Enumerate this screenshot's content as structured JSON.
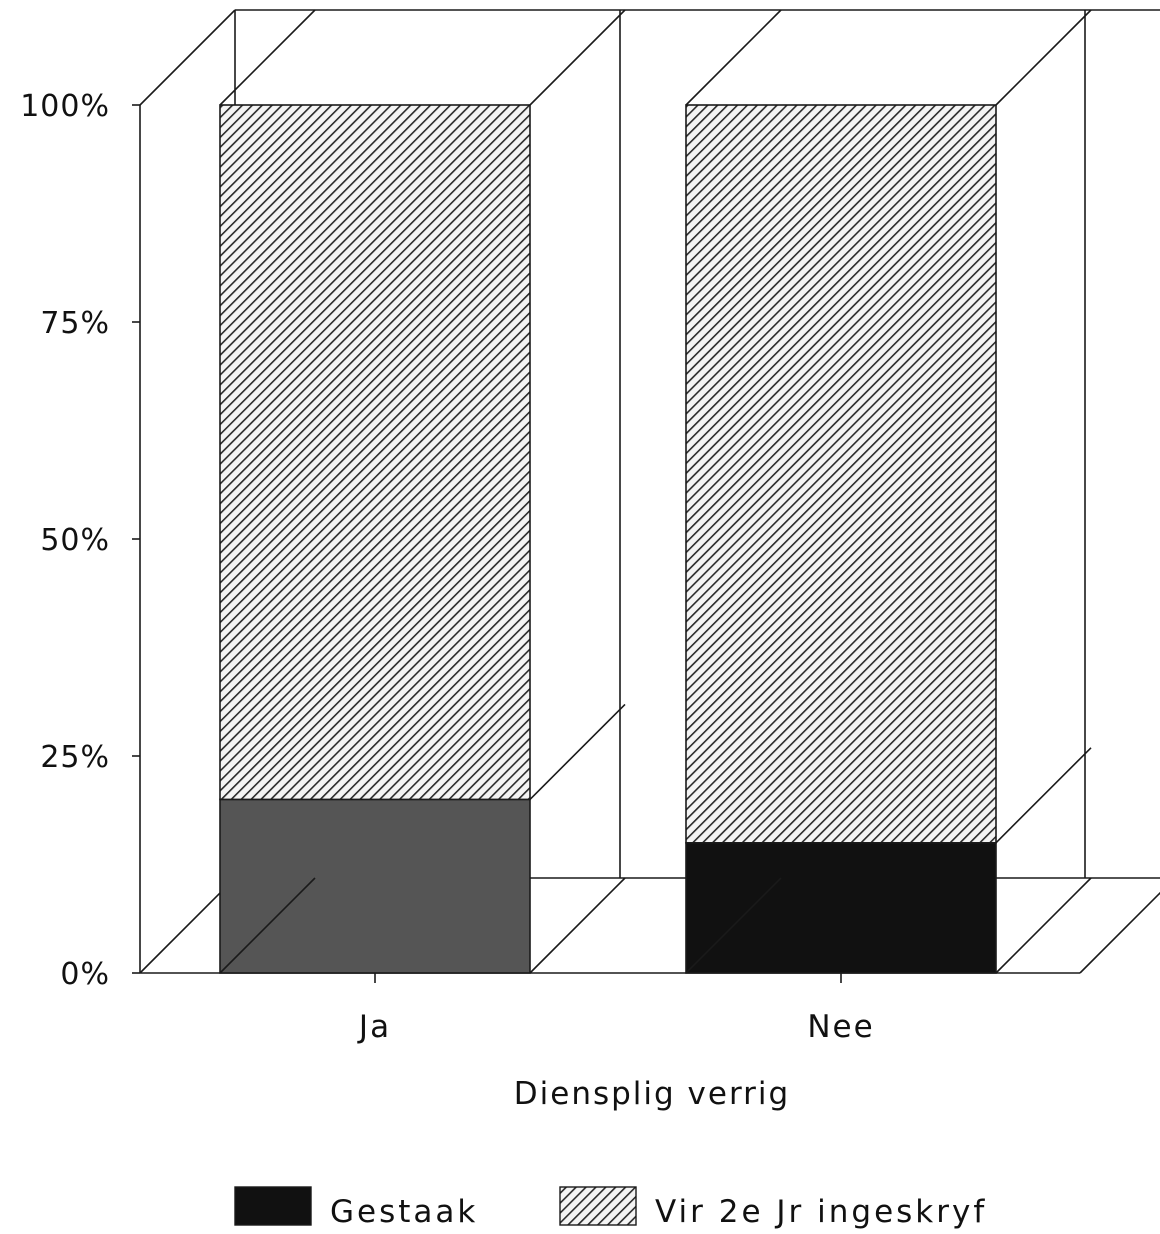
{
  "chart_data": {
    "type": "bar",
    "stacked": true,
    "three_d": true,
    "categories": [
      "Ja",
      "Nee"
    ],
    "series": [
      {
        "name": "Gestaak",
        "values": [
          20,
          15
        ],
        "color": "#111111",
        "pattern": "solid"
      },
      {
        "name": "Vir 2e Jr ingeskryf",
        "values": [
          80,
          85
        ],
        "color": "#555555",
        "pattern": "diagonal-hatch"
      }
    ],
    "xlabel": "Diensplig verrig",
    "ylabel": "",
    "ylim": [
      0,
      100
    ],
    "yticks": [
      "0%",
      "25%",
      "50%",
      "75%",
      "100%"
    ],
    "ytick_values": [
      0,
      25,
      50,
      75,
      100
    ],
    "legend_position": "bottom",
    "grid": false
  }
}
